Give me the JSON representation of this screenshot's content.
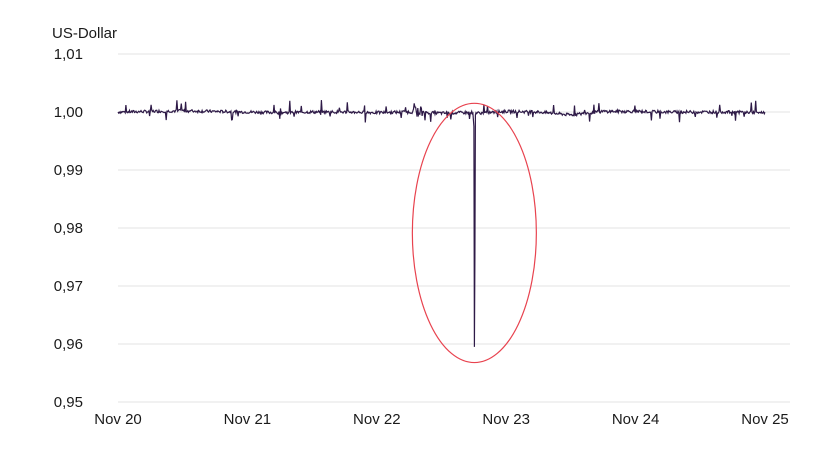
{
  "chart_data": {
    "type": "line",
    "title": "",
    "ylabel": "US-Dollar",
    "xlabel": "",
    "ylim": [
      0.95,
      1.01
    ],
    "grid": true,
    "y_ticks": [
      "0,95",
      "0,96",
      "0,97",
      "0,98",
      "0,99",
      "1,00",
      "1,01"
    ],
    "y_tick_values": [
      0.95,
      0.96,
      0.97,
      0.98,
      0.99,
      1.0,
      1.01
    ],
    "x_ticks": [
      "Nov 20",
      "Nov 21",
      "Nov 22",
      "Nov 23",
      "Nov 24",
      "Nov 25"
    ],
    "x_range": [
      "Nov 20",
      "Nov 25"
    ],
    "series_color": "#2e1a47",
    "highlight_color": "#e8434f",
    "series": [
      {
        "x": [
          "Nov 20",
          "Nov 20 06:00",
          "Nov 20 12:00",
          "Nov 20 18:00",
          "Nov 21",
          "Nov 21 06:00",
          "Nov 21 12:00",
          "Nov 21 18:00",
          "Nov 22",
          "Nov 22 06:00",
          "Nov 22 12:00",
          "Nov 22 17:00",
          "Nov 22 18:00",
          "Nov 22 19:00",
          "Nov 23",
          "Nov 23 06:00",
          "Nov 23 12:00",
          "Nov 23 18:00",
          "Nov 24",
          "Nov 24 06:00",
          "Nov 24 12:00",
          "Nov 24 18:00",
          "Nov 25"
        ],
        "values": [
          1.0,
          1.0001,
          1.0002,
          1.0001,
          1.0,
          0.9999,
          1.0,
          1.0,
          0.9999,
          1.0,
          0.9998,
          0.9999,
          0.9595,
          0.9998,
          1.0001,
          1.0,
          0.9995,
          1.0001,
          1.0001,
          1.0,
          1.0,
          1.0,
          0.9999
        ]
      }
    ]
  }
}
